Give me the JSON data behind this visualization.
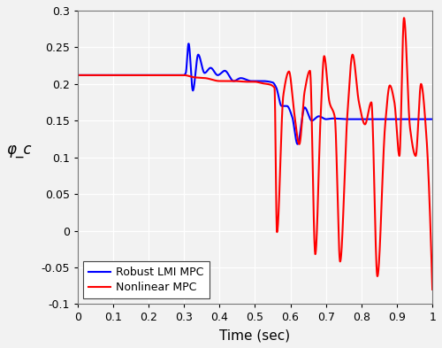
{
  "xlabel": "Time (sec)",
  "ylabel": "φ_c",
  "xlim": [
    0,
    1.0
  ],
  "ylim": [
    -0.1,
    0.3
  ],
  "xticks": [
    0,
    0.1,
    0.2,
    0.3,
    0.4,
    0.5,
    0.6,
    0.7,
    0.8,
    0.9,
    1.0
  ],
  "yticks": [
    -0.1,
    -0.05,
    0,
    0.05,
    0.1,
    0.15,
    0.2,
    0.25,
    0.3
  ],
  "blue_color": "#0000ff",
  "red_color": "#ff0000",
  "legend_labels": [
    "Robust LMI MPC",
    "Nonlinear MPC"
  ],
  "background_color": "#f2f2f2",
  "grid_color": "#ffffff",
  "figsize": [
    5.0,
    3.93
  ],
  "dpi": 100
}
